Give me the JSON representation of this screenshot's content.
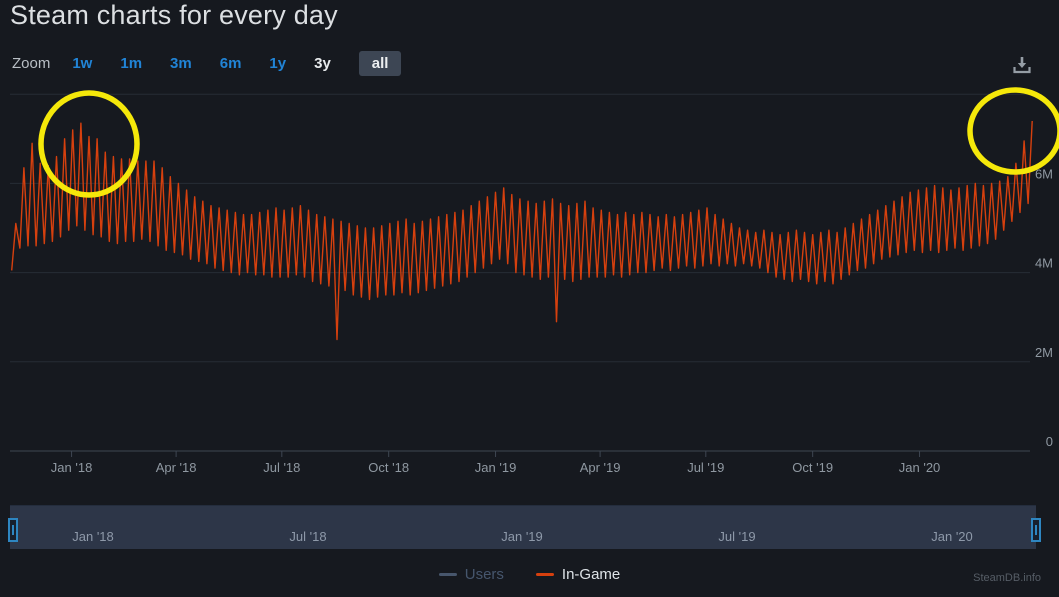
{
  "page": {
    "title": "Steam charts for every day",
    "watermark": "SteamDB.info"
  },
  "toolbar": {
    "zoom_label": "Zoom",
    "ranges": [
      {
        "label": "1w",
        "state": "link"
      },
      {
        "label": "1m",
        "state": "link"
      },
      {
        "label": "3m",
        "state": "link"
      },
      {
        "label": "6m",
        "state": "link"
      },
      {
        "label": "1y",
        "state": "link"
      },
      {
        "label": "3y",
        "state": "plain"
      },
      {
        "label": "all",
        "state": "selected"
      }
    ],
    "link_color": "#2184d6"
  },
  "legend": {
    "items": [
      {
        "label": "Users",
        "color": "#47566c",
        "muted": true
      },
      {
        "label": "In-Game",
        "color": "#d6400e",
        "muted": false
      }
    ]
  },
  "navigator": {
    "labels": [
      "Jan '18",
      "Jul '18",
      "Jan '19",
      "Jul '19",
      "Jan '20"
    ]
  },
  "chart_data": {
    "type": "line",
    "title": "Steam charts for every day",
    "ylabel": "",
    "xlabel": "",
    "unit": "concurrent players, millions",
    "ylim_m": [
      0,
      8.1
    ],
    "grid": "horizontal-only",
    "legend_position": "bottom-center",
    "yticks": [
      {
        "value_m": 0,
        "label": "0"
      },
      {
        "value_m": 2,
        "label": "2M"
      },
      {
        "value_m": 4,
        "label": "4M"
      },
      {
        "value_m": 6,
        "label": "6M"
      },
      {
        "value_m": 8,
        "label": ""
      }
    ],
    "xticks": [
      {
        "day": 53,
        "label": "Jan '18"
      },
      {
        "day": 143,
        "label": "Apr '18"
      },
      {
        "day": 234,
        "label": "Jul '18"
      },
      {
        "day": 326,
        "label": "Oct '18"
      },
      {
        "day": 418,
        "label": "Jan '19"
      },
      {
        "day": 508,
        "label": "Apr '19"
      },
      {
        "day": 599,
        "label": "Jul '19"
      },
      {
        "day": 691,
        "label": "Oct '19"
      },
      {
        "day": 783,
        "label": "Jan '20"
      }
    ],
    "series": [
      {
        "name": "Users",
        "visible": false,
        "color": "#47566c"
      },
      {
        "name": "In-Game",
        "visible": true,
        "color": "#d6400e",
        "description": "weekly envelope [day_offset, weekly_low_M, weekly_high_M]; day 0 = left edge of plot, ticks anchor dates above",
        "weekly_envelope": [
          [
            0,
            4.05,
            5.1
          ],
          [
            7,
            4.55,
            6.35
          ],
          [
            14,
            4.6,
            6.9
          ],
          [
            21,
            4.6,
            6.45
          ],
          [
            28,
            4.65,
            6.4
          ],
          [
            35,
            4.7,
            6.6
          ],
          [
            42,
            4.8,
            7.0
          ],
          [
            49,
            4.95,
            7.2
          ],
          [
            56,
            5.05,
            7.35
          ],
          [
            63,
            4.95,
            7.05
          ],
          [
            70,
            4.85,
            7.0
          ],
          [
            77,
            4.8,
            6.7
          ],
          [
            84,
            4.7,
            6.6
          ],
          [
            91,
            4.65,
            6.55
          ],
          [
            98,
            4.7,
            6.55
          ],
          [
            105,
            4.7,
            6.5
          ],
          [
            112,
            4.75,
            6.5
          ],
          [
            119,
            4.7,
            6.5
          ],
          [
            126,
            4.6,
            6.35
          ],
          [
            133,
            4.5,
            6.15
          ],
          [
            140,
            4.45,
            6.0
          ],
          [
            147,
            4.4,
            5.85
          ],
          [
            154,
            4.3,
            5.7
          ],
          [
            161,
            4.25,
            5.6
          ],
          [
            168,
            4.2,
            5.5
          ],
          [
            175,
            4.1,
            5.45
          ],
          [
            182,
            4.05,
            5.4
          ],
          [
            189,
            4.0,
            5.35
          ],
          [
            196,
            3.95,
            5.3
          ],
          [
            203,
            4.0,
            5.3
          ],
          [
            210,
            3.95,
            5.35
          ],
          [
            217,
            3.95,
            5.4
          ],
          [
            224,
            3.9,
            5.45
          ],
          [
            231,
            3.9,
            5.4
          ],
          [
            238,
            3.9,
            5.45
          ],
          [
            245,
            3.95,
            5.5
          ],
          [
            252,
            3.9,
            5.4
          ],
          [
            259,
            3.8,
            5.3
          ],
          [
            266,
            3.75,
            5.25
          ],
          [
            273,
            3.7,
            5.2
          ],
          [
            280,
            2.5,
            5.15
          ],
          [
            287,
            3.6,
            5.1
          ],
          [
            294,
            3.5,
            5.05
          ],
          [
            301,
            3.45,
            5.0
          ],
          [
            308,
            3.4,
            5.0
          ],
          [
            315,
            3.45,
            5.05
          ],
          [
            322,
            3.5,
            5.1
          ],
          [
            329,
            3.5,
            5.15
          ],
          [
            336,
            3.55,
            5.2
          ],
          [
            343,
            3.5,
            5.1
          ],
          [
            350,
            3.55,
            5.15
          ],
          [
            357,
            3.6,
            5.2
          ],
          [
            364,
            3.65,
            5.25
          ],
          [
            371,
            3.7,
            5.3
          ],
          [
            378,
            3.75,
            5.35
          ],
          [
            385,
            3.8,
            5.4
          ],
          [
            392,
            3.9,
            5.5
          ],
          [
            399,
            4.0,
            5.6
          ],
          [
            406,
            4.1,
            5.7
          ],
          [
            413,
            4.2,
            5.8
          ],
          [
            420,
            4.3,
            5.9
          ],
          [
            427,
            4.2,
            5.75
          ],
          [
            434,
            4.0,
            5.65
          ],
          [
            441,
            3.95,
            5.6
          ],
          [
            448,
            3.9,
            5.55
          ],
          [
            455,
            3.85,
            5.6
          ],
          [
            462,
            3.9,
            5.65
          ],
          [
            469,
            2.9,
            5.55
          ],
          [
            476,
            3.85,
            5.5
          ],
          [
            483,
            3.8,
            5.55
          ],
          [
            490,
            3.85,
            5.6
          ],
          [
            497,
            3.9,
            5.45
          ],
          [
            504,
            3.9,
            5.4
          ],
          [
            511,
            3.9,
            5.35
          ],
          [
            518,
            3.95,
            5.3
          ],
          [
            525,
            3.9,
            5.35
          ],
          [
            532,
            3.95,
            5.3
          ],
          [
            539,
            4.0,
            5.35
          ],
          [
            546,
            4.0,
            5.3
          ],
          [
            553,
            4.05,
            5.25
          ],
          [
            560,
            4.1,
            5.3
          ],
          [
            567,
            4.05,
            5.25
          ],
          [
            574,
            4.1,
            5.3
          ],
          [
            581,
            4.15,
            5.35
          ],
          [
            588,
            4.1,
            5.4
          ],
          [
            595,
            4.15,
            5.45
          ],
          [
            602,
            4.2,
            5.3
          ],
          [
            609,
            4.15,
            5.2
          ],
          [
            616,
            4.2,
            5.1
          ],
          [
            623,
            4.15,
            5.0
          ],
          [
            630,
            4.2,
            4.95
          ],
          [
            637,
            4.15,
            4.9
          ],
          [
            644,
            4.1,
            4.95
          ],
          [
            651,
            4.0,
            4.9
          ],
          [
            658,
            3.9,
            4.85
          ],
          [
            665,
            3.85,
            4.9
          ],
          [
            672,
            3.8,
            4.95
          ],
          [
            679,
            3.85,
            4.9
          ],
          [
            686,
            3.8,
            4.85
          ],
          [
            693,
            3.75,
            4.9
          ],
          [
            700,
            3.8,
            4.95
          ],
          [
            707,
            3.75,
            4.9
          ],
          [
            714,
            3.85,
            5.0
          ],
          [
            721,
            3.95,
            5.1
          ],
          [
            728,
            4.05,
            5.2
          ],
          [
            735,
            4.1,
            5.3
          ],
          [
            742,
            4.2,
            5.4
          ],
          [
            749,
            4.3,
            5.5
          ],
          [
            756,
            4.35,
            5.6
          ],
          [
            763,
            4.4,
            5.7
          ],
          [
            770,
            4.45,
            5.8
          ],
          [
            777,
            4.5,
            5.85
          ],
          [
            784,
            4.45,
            5.9
          ],
          [
            791,
            4.5,
            5.95
          ],
          [
            798,
            4.45,
            5.9
          ],
          [
            805,
            4.5,
            5.85
          ],
          [
            812,
            4.55,
            5.9
          ],
          [
            819,
            4.5,
            5.95
          ],
          [
            826,
            4.55,
            6.0
          ],
          [
            833,
            4.6,
            5.95
          ],
          [
            840,
            4.65,
            6.0
          ],
          [
            847,
            4.75,
            6.05
          ],
          [
            854,
            4.95,
            6.15
          ],
          [
            861,
            5.15,
            6.45
          ],
          [
            868,
            5.35,
            6.95
          ],
          [
            875,
            5.55,
            7.4
          ]
        ],
        "anomalous_dips": [
          {
            "day": 281,
            "value_m": 2.5
          },
          {
            "day": 470,
            "value_m": 2.9
          }
        ],
        "peak_value_m": 7.4
      }
    ],
    "annotations": {
      "color": "#f5e80a",
      "circles": [
        {
          "id": "highlight-left",
          "around": "peak near Jan '18"
        },
        {
          "id": "highlight-right",
          "around": "surge at end of chart"
        }
      ]
    }
  }
}
